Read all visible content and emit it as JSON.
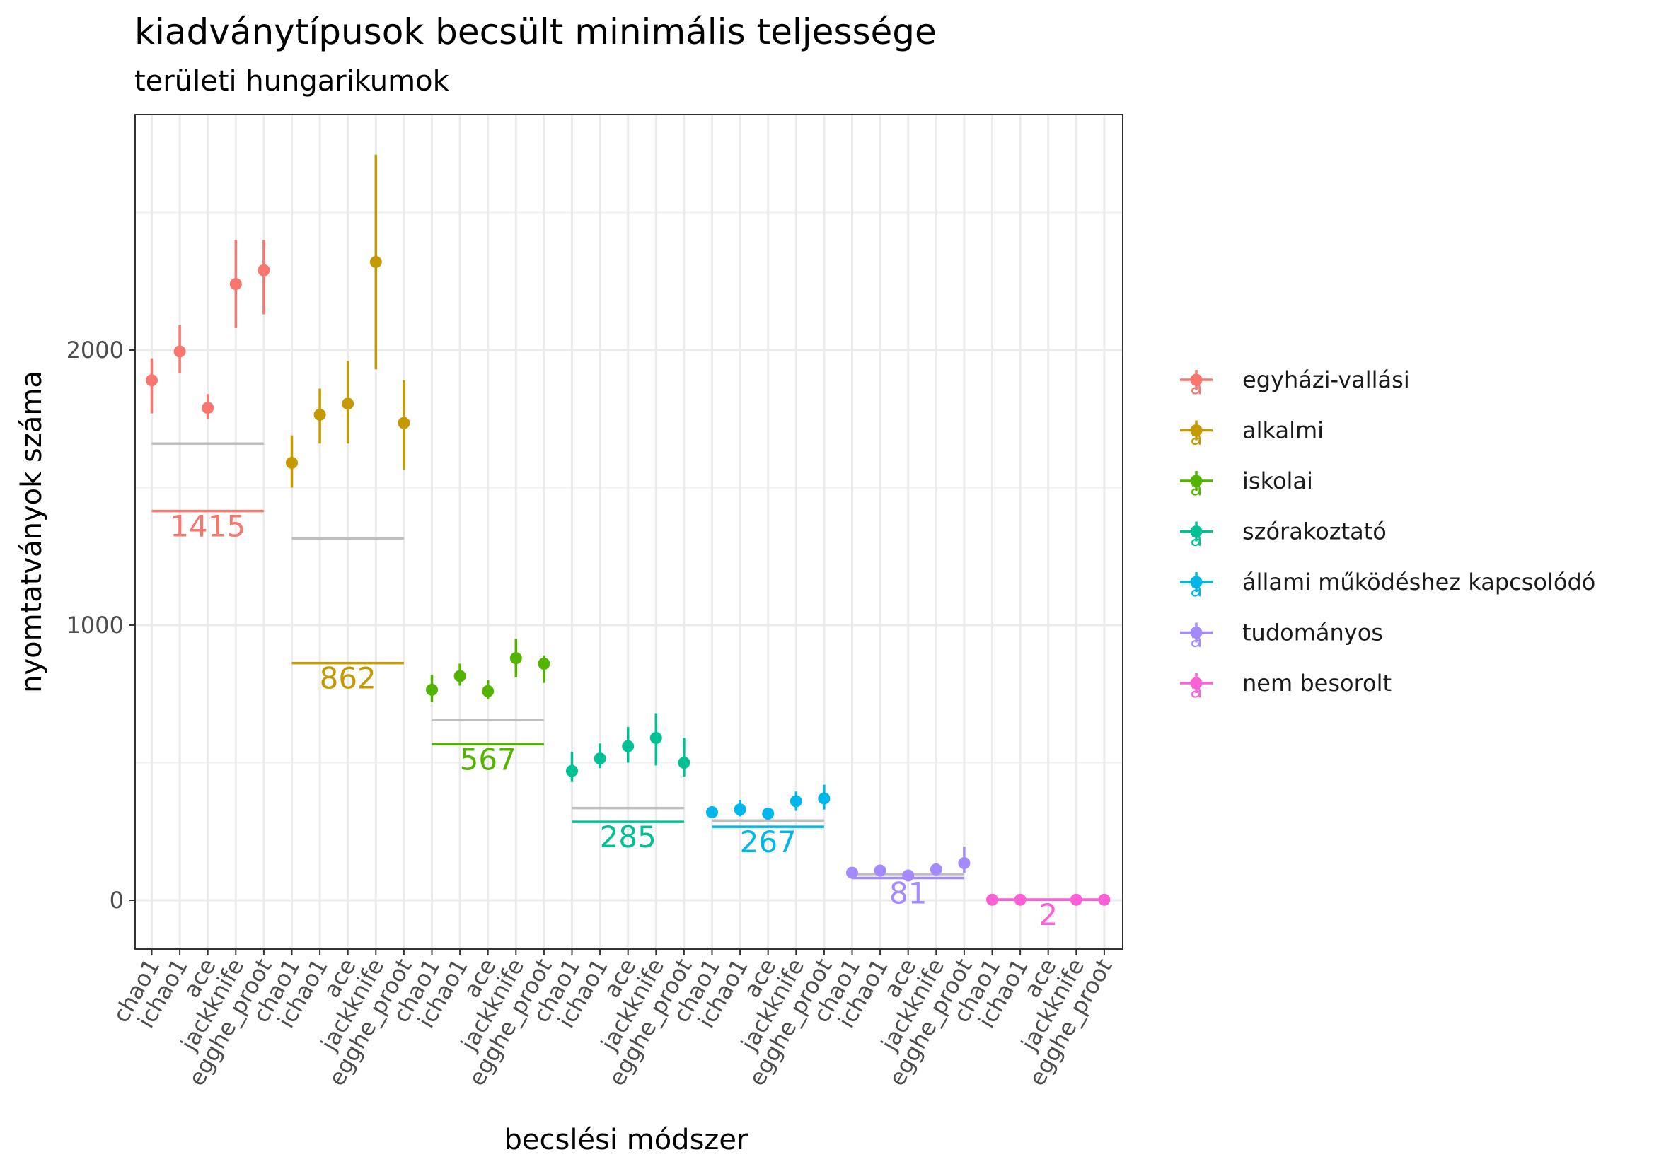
{
  "chart_data": {
    "type": "scatter",
    "title": "kiadványtípusok becsült minimális teljessége",
    "subtitle": "területi hungarikumok",
    "xlabel": "becslési módszer",
    "ylabel": "nyomtatványok száma",
    "ylim": [
      -180,
      2850
    ],
    "y_ticks": [
      0,
      1000,
      2000
    ],
    "y_tick_labels": [
      "0",
      "1000",
      "2000"
    ],
    "methods": [
      "chao1",
      "ichao1",
      "ace",
      "jackknife",
      "egghe_proot"
    ],
    "grid": true,
    "legend_position": "right",
    "legend_glyph": "a",
    "groups": [
      {
        "name": "egyházi-vallási",
        "color": "#F8766D",
        "observed": 1415,
        "observed_label": "1415",
        "grey_line": 1660,
        "points": [
          {
            "y": 1890,
            "lo": 1770,
            "hi": 1970
          },
          {
            "y": 1995,
            "lo": 1915,
            "hi": 2090
          },
          {
            "y": 1790,
            "lo": 1750,
            "hi": 1840
          },
          {
            "y": 2240,
            "lo": 2080,
            "hi": 2400
          },
          {
            "y": 2290,
            "lo": 2130,
            "hi": 2400
          }
        ]
      },
      {
        "name": "alkalmi",
        "color": "#C49A00",
        "observed": 862,
        "observed_label": "862",
        "grey_line": 1315,
        "points": [
          {
            "y": 1590,
            "lo": 1500,
            "hi": 1690
          },
          {
            "y": 1765,
            "lo": 1660,
            "hi": 1860
          },
          {
            "y": 1805,
            "lo": 1660,
            "hi": 1960
          },
          {
            "y": 2320,
            "lo": 1930,
            "hi": 2710
          },
          {
            "y": 1735,
            "lo": 1565,
            "hi": 1890
          }
        ]
      },
      {
        "name": "iskolai",
        "color": "#53B400",
        "observed": 567,
        "observed_label": "567",
        "grey_line": 655,
        "points": [
          {
            "y": 765,
            "lo": 720,
            "hi": 820
          },
          {
            "y": 815,
            "lo": 780,
            "hi": 860
          },
          {
            "y": 760,
            "lo": 730,
            "hi": 800
          },
          {
            "y": 880,
            "lo": 810,
            "hi": 950
          },
          {
            "y": 860,
            "lo": 790,
            "hi": 890
          }
        ]
      },
      {
        "name": "szórakoztató",
        "color": "#00C094",
        "observed": 285,
        "observed_label": "285",
        "grey_line": 335,
        "points": [
          {
            "y": 470,
            "lo": 430,
            "hi": 540
          },
          {
            "y": 515,
            "lo": 480,
            "hi": 570
          },
          {
            "y": 560,
            "lo": 500,
            "hi": 630
          },
          {
            "y": 590,
            "lo": 490,
            "hi": 680
          },
          {
            "y": 500,
            "lo": 450,
            "hi": 590
          }
        ]
      },
      {
        "name": "állami működéshez kapcsolódó",
        "color": "#00B6EB",
        "observed": 267,
        "observed_label": "267",
        "grey_line": 290,
        "points": [
          {
            "y": 320,
            "lo": 305,
            "hi": 335
          },
          {
            "y": 330,
            "lo": 305,
            "hi": 365
          },
          {
            "y": 315,
            "lo": 300,
            "hi": 330
          },
          {
            "y": 360,
            "lo": 325,
            "hi": 395
          },
          {
            "y": 370,
            "lo": 330,
            "hi": 420
          }
        ]
      },
      {
        "name": "tudományos",
        "color": "#A58AFF",
        "observed": 81,
        "observed_label": "81",
        "grey_line": 95,
        "points": [
          {
            "y": 100,
            "lo": 92,
            "hi": 112
          },
          {
            "y": 108,
            "lo": 95,
            "hi": 122
          },
          {
            "y": 90,
            "lo": 85,
            "hi": 100
          },
          {
            "y": 112,
            "lo": 95,
            "hi": 130
          },
          {
            "y": 135,
            "lo": 100,
            "hi": 195
          }
        ]
      },
      {
        "name": "nem besorolt",
        "color": "#FB61D7",
        "observed": 2,
        "observed_label": "2",
        "grey_line": 3,
        "points": [
          {
            "y": 2,
            "lo": 2,
            "hi": 2
          },
          {
            "y": 2,
            "lo": 2,
            "hi": 2
          },
          {
            "y": null,
            "lo": null,
            "hi": null
          },
          {
            "y": 2,
            "lo": 2,
            "hi": 2
          },
          {
            "y": 2,
            "lo": 2,
            "hi": 2
          }
        ]
      }
    ]
  }
}
